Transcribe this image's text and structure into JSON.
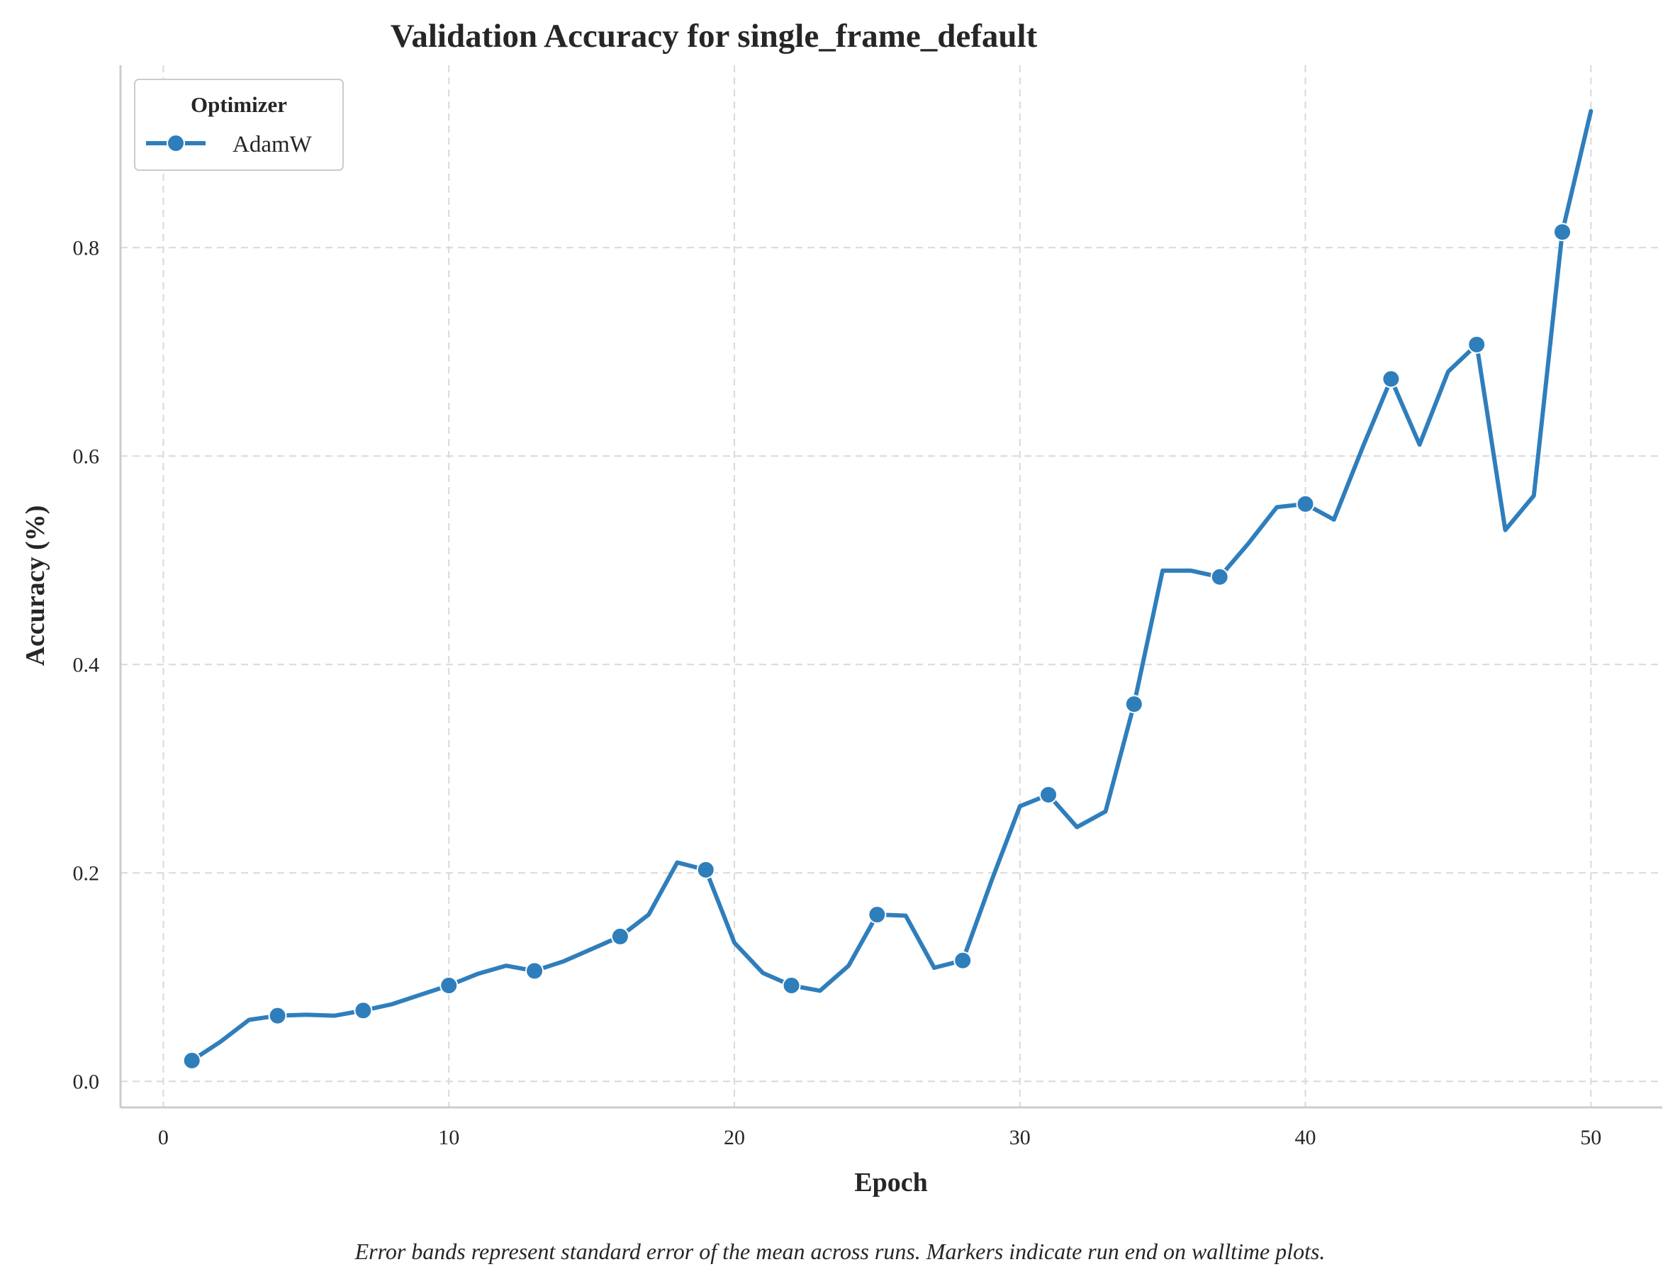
{
  "chart_data": {
    "type": "line",
    "title": "Validation Accuracy for single_frame_default",
    "xlabel": "Epoch",
    "ylabel": "Accuracy (%)",
    "xlim": [
      -1.5,
      52.5
    ],
    "ylim": [
      -0.025,
      0.975
    ],
    "xticks": [
      0,
      10,
      20,
      30,
      40,
      50
    ],
    "yticks": [
      0.0,
      0.2,
      0.4,
      0.6,
      0.8
    ],
    "ytick_labels": [
      "0.0",
      "0.2",
      "0.4",
      "0.6",
      "0.8"
    ],
    "grid": true,
    "legend": {
      "title": "Optimizer",
      "placement": "top-left"
    },
    "series": [
      {
        "name": "AdamW",
        "color": "#2f7ebc",
        "x": [
          1,
          2,
          3,
          4,
          5,
          6,
          7,
          8,
          9,
          10,
          11,
          12,
          13,
          14,
          15,
          16,
          17,
          18,
          19,
          20,
          21,
          22,
          23,
          24,
          25,
          26,
          27,
          28,
          29,
          30,
          31,
          32,
          33,
          34,
          35,
          36,
          37,
          38,
          39,
          40,
          41,
          42,
          43,
          44,
          45,
          46,
          47,
          48,
          49,
          50
        ],
        "y": [
          0.02,
          0.038,
          0.059,
          0.063,
          0.064,
          0.063,
          0.068,
          0.074,
          0.083,
          0.092,
          0.103,
          0.111,
          0.106,
          0.115,
          0.127,
          0.139,
          0.16,
          0.21,
          0.203,
          0.133,
          0.104,
          0.092,
          0.087,
          0.111,
          0.16,
          0.159,
          0.109,
          0.116,
          0.192,
          0.264,
          0.275,
          0.244,
          0.259,
          0.362,
          0.49,
          0.49,
          0.484,
          0.516,
          0.551,
          0.554,
          0.539,
          0.608,
          0.674,
          0.611,
          0.681,
          0.707,
          0.529,
          0.562,
          0.815,
          0.931
        ],
        "marker_x": [
          1,
          4,
          7,
          10,
          13,
          16,
          19,
          22,
          25,
          28,
          31,
          34,
          37,
          40,
          43,
          46,
          49
        ]
      }
    ]
  },
  "caption": "Error bands represent standard error of the mean across runs. Markers indicate run end on walltime plots."
}
